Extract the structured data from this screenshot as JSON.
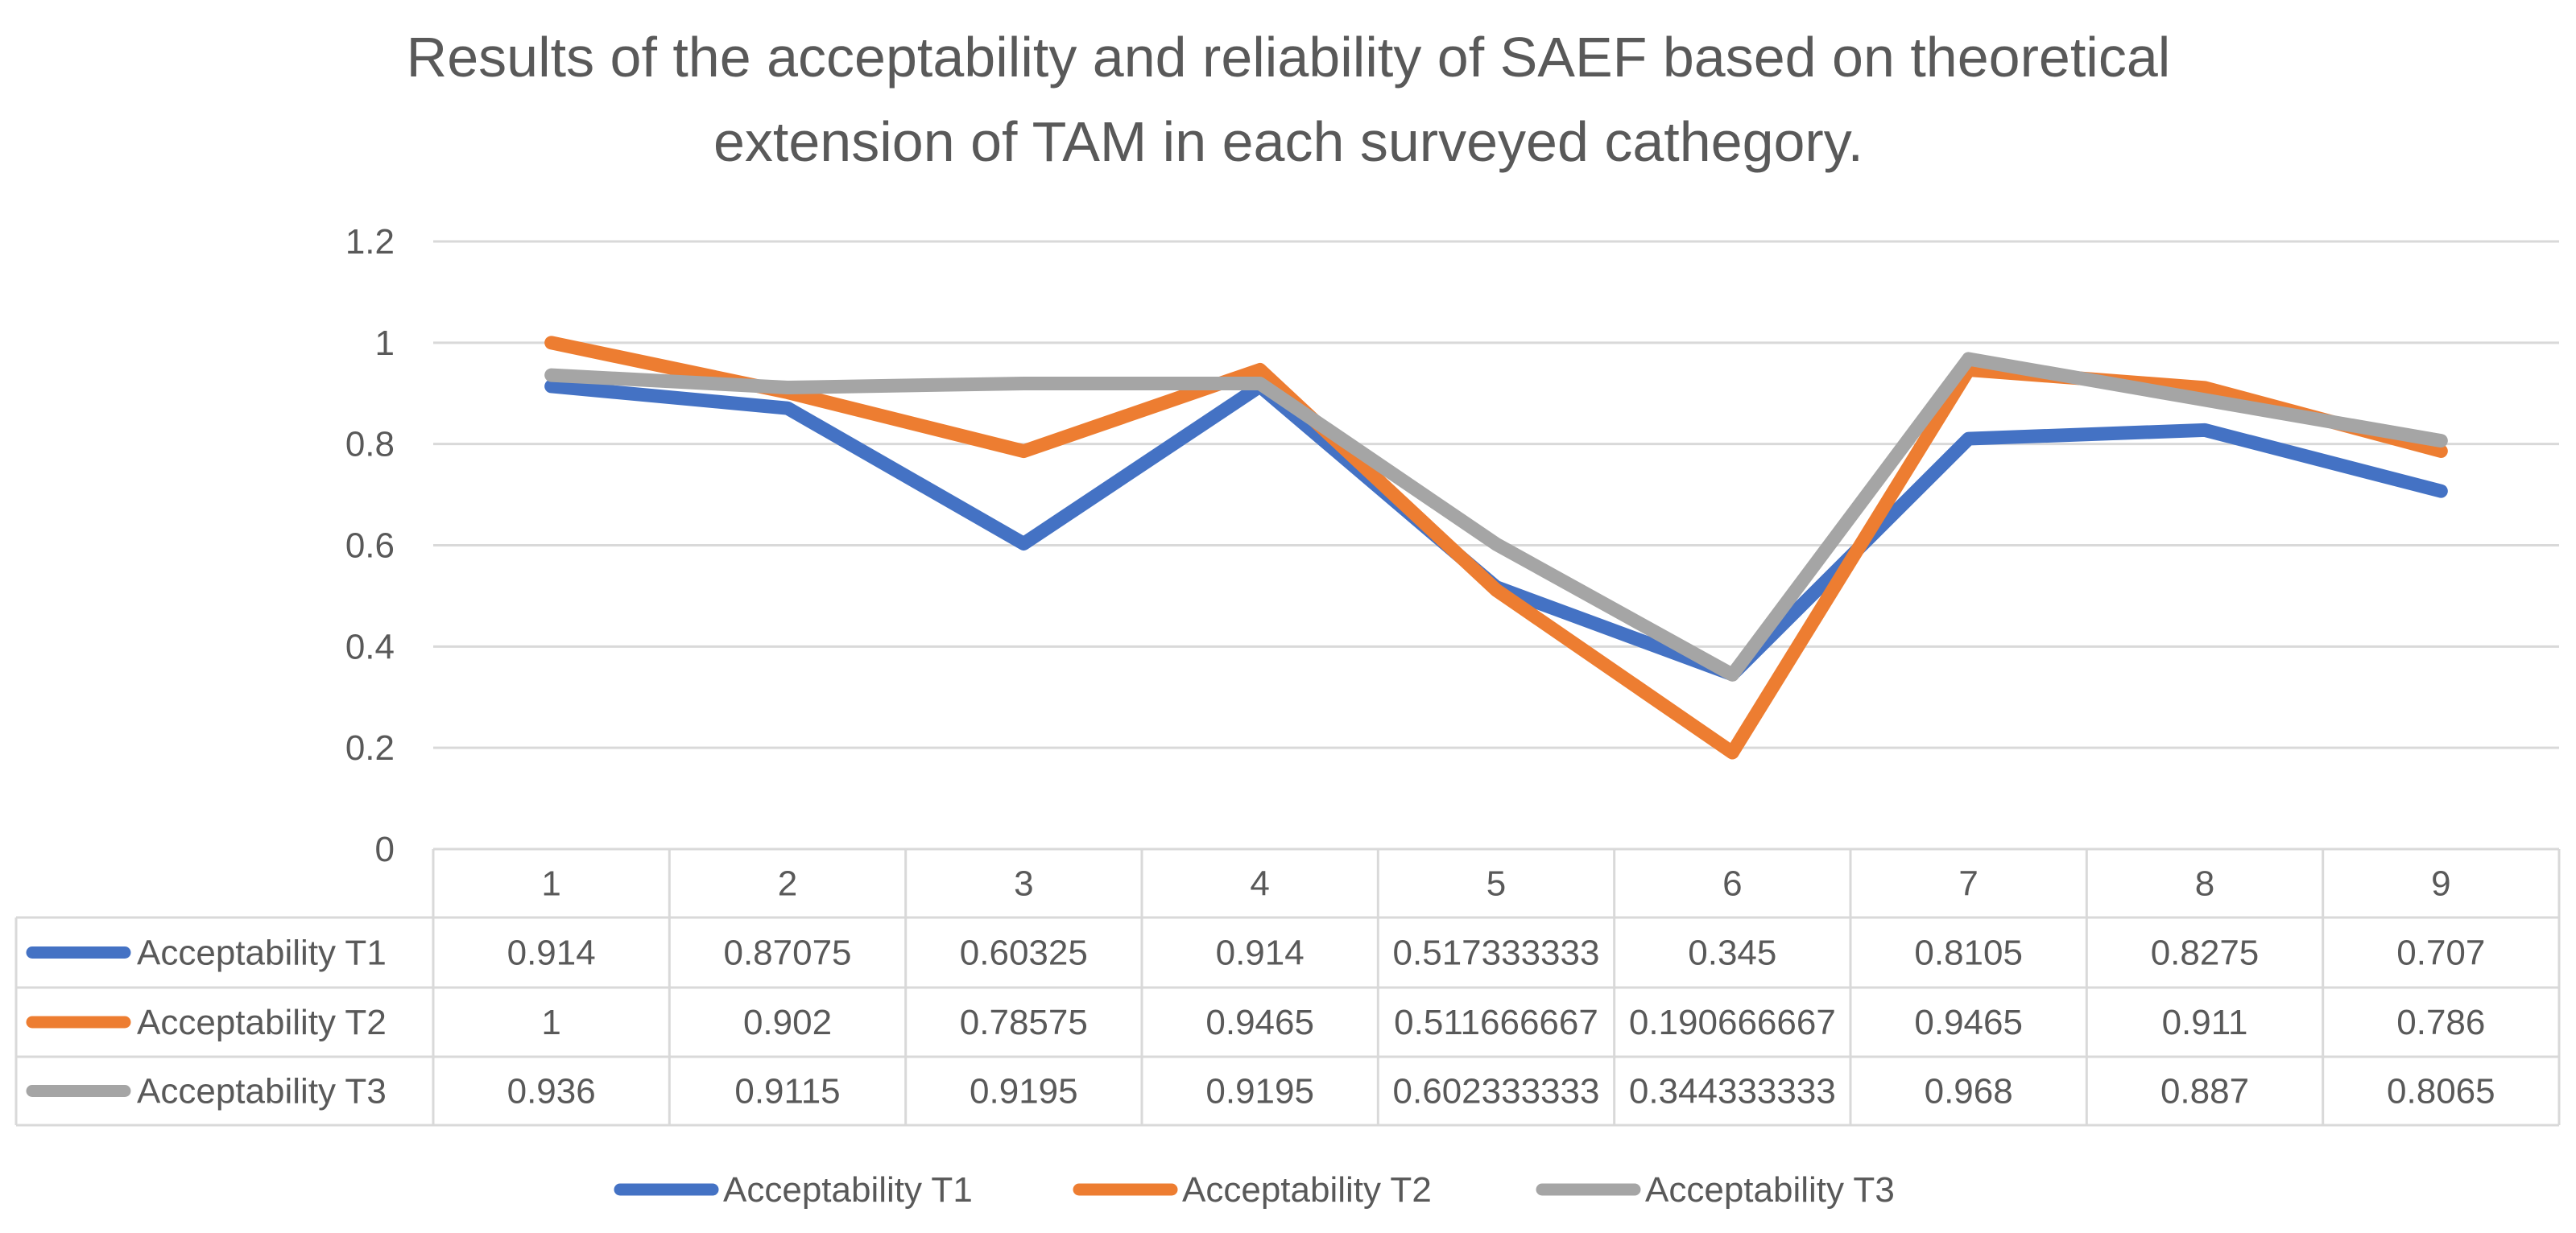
{
  "chart_data": {
    "type": "line",
    "title_lines": [
      "Results of the acceptability and reliability of SAEF based on theoretical",
      "extension of TAM in each surveyed cathegory."
    ],
    "categories": [
      "1",
      "2",
      "3",
      "4",
      "5",
      "6",
      "7",
      "8",
      "9"
    ],
    "y_ticks": [
      "0",
      "0.2",
      "0.4",
      "0.6",
      "0.8",
      "1",
      "1.2"
    ],
    "ylim": [
      0,
      1.2
    ],
    "grid": true,
    "legend_position": "bottom",
    "data_table": true,
    "series": [
      {
        "name": "Acceptability T1",
        "color": "#4472C4",
        "values": [
          0.914,
          0.87075,
          0.60325,
          0.914,
          0.517333333,
          0.345,
          0.8105,
          0.8275,
          0.707
        ],
        "labels": [
          "0.914",
          "0.87075",
          "0.60325",
          "0.914",
          "0.517333333",
          "0.345",
          "0.8105",
          "0.8275",
          "0.707"
        ]
      },
      {
        "name": "Acceptability T2",
        "color": "#ED7D31",
        "values": [
          1,
          0.902,
          0.78575,
          0.9465,
          0.511666667,
          0.190666667,
          0.9465,
          0.911,
          0.786
        ],
        "labels": [
          "1",
          "0.902",
          "0.78575",
          "0.9465",
          "0.511666667",
          "0.190666667",
          "0.9465",
          "0.911",
          "0.786"
        ]
      },
      {
        "name": "Acceptability T3",
        "color": "#A5A5A5",
        "values": [
          0.936,
          0.9115,
          0.9195,
          0.9195,
          0.602333333,
          0.344333333,
          0.968,
          0.887,
          0.8065
        ],
        "labels": [
          "0.936",
          "0.9115",
          "0.9195",
          "0.9195",
          "0.602333333",
          "0.344333333",
          "0.968",
          "0.887",
          "0.8065"
        ]
      }
    ],
    "grid_color": "#D9D9D9",
    "text_color": "#595959"
  }
}
